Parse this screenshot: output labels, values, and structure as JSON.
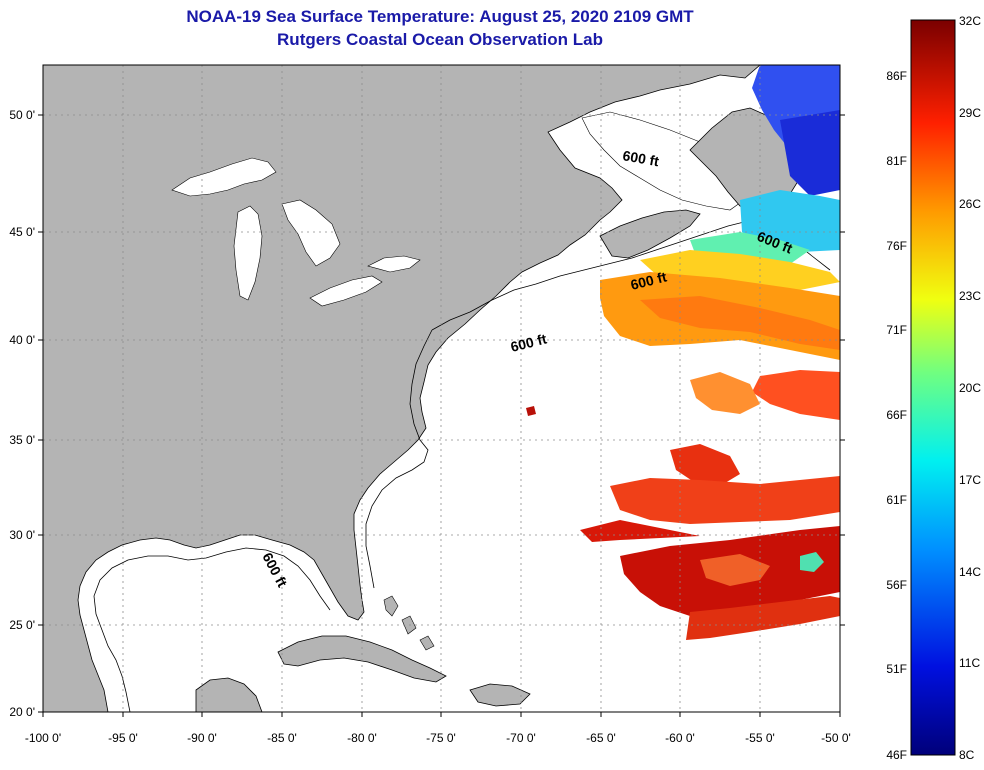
{
  "title": {
    "line1": "NOAA-19 Sea Surface Temperature:  August 25, 2020 2109 GMT",
    "line2": "Rutgers Coastal Ocean Observation Lab"
  },
  "colors": {
    "title": "#1a1aa8",
    "land": "#b4b4b4",
    "water": "#ffffff",
    "grid": "#8c8c8c"
  },
  "map": {
    "lon_labels": [
      "-100 0'",
      "-95 0'",
      "-90 0'",
      "-85 0'",
      "-80 0'",
      "-75 0'",
      "-70 0'",
      "-65 0'",
      "-60 0'",
      "-55 0'",
      "-50 0'"
    ],
    "lat_labels": [
      "50 0'",
      "45 0'",
      "40 0'",
      "35 0'",
      "30 0'",
      "25 0'",
      "20 0'"
    ],
    "lon_range": [
      -100,
      -50
    ],
    "lat_range": [
      20,
      52.5
    ],
    "contour_label": "600 ft"
  },
  "colorbar": {
    "celsius_labels": [
      "32C",
      "29C",
      "26C",
      "23C",
      "20C",
      "17C",
      "14C",
      "11C",
      "8C"
    ],
    "fahrenheit_labels": [
      "86F",
      "81F",
      "76F",
      "71F",
      "66F",
      "61F",
      "56F",
      "51F",
      "46F"
    ]
  }
}
